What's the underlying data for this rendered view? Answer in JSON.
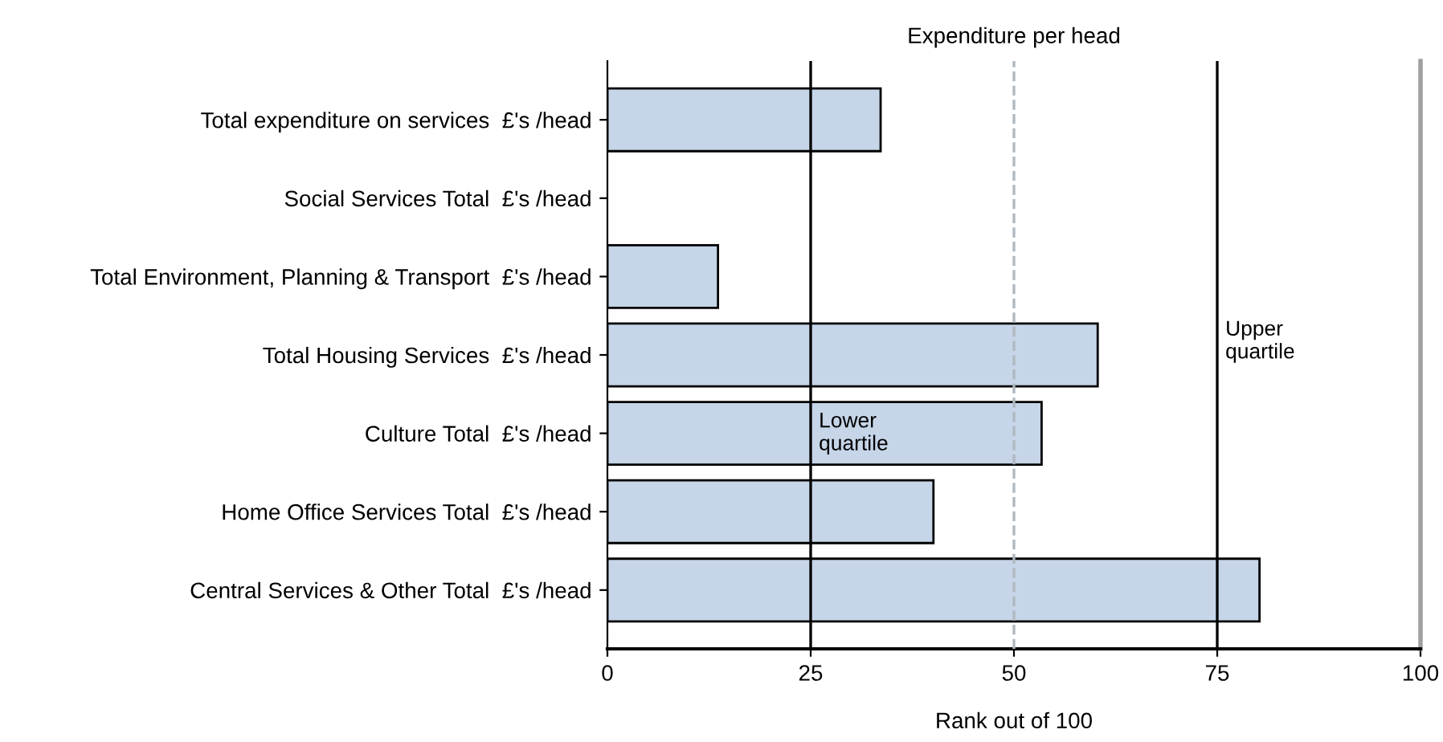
{
  "chart_data": {
    "type": "bar",
    "orientation": "horizontal",
    "title": "Expenditure per head",
    "xlabel": "Rank out of 100",
    "categories": [
      "Total expenditure on services  £'s /head",
      "Social Services Total  £'s /head",
      "Total Environment, Planning & Transport  £'s /head",
      "Total Housing Services  £'s /head",
      "Culture Total  £'s /head",
      "Home Office Services Total  £'s /head",
      "Central Services & Other Total  £'s /head"
    ],
    "values": [
      33.6,
      null,
      13.6,
      60.3,
      53.4,
      40.1,
      80.2
    ],
    "color": "#c6d5e8",
    "xlim": [
      0,
      100
    ],
    "xticks": [
      0,
      25,
      50,
      75,
      100
    ],
    "ref_lines": [
      {
        "axis": "x",
        "value": 25,
        "label": "Lower\nquartile",
        "color": "#000000",
        "line_style": "solid"
      },
      {
        "axis": "x",
        "value": 50,
        "color": "#b0b8c0",
        "line_style": "dashed"
      },
      {
        "axis": "x",
        "value": 75,
        "label": "Upper\nquartile",
        "color": "#000000",
        "line_style": "solid"
      }
    ],
    "grid": false,
    "legend": false
  }
}
